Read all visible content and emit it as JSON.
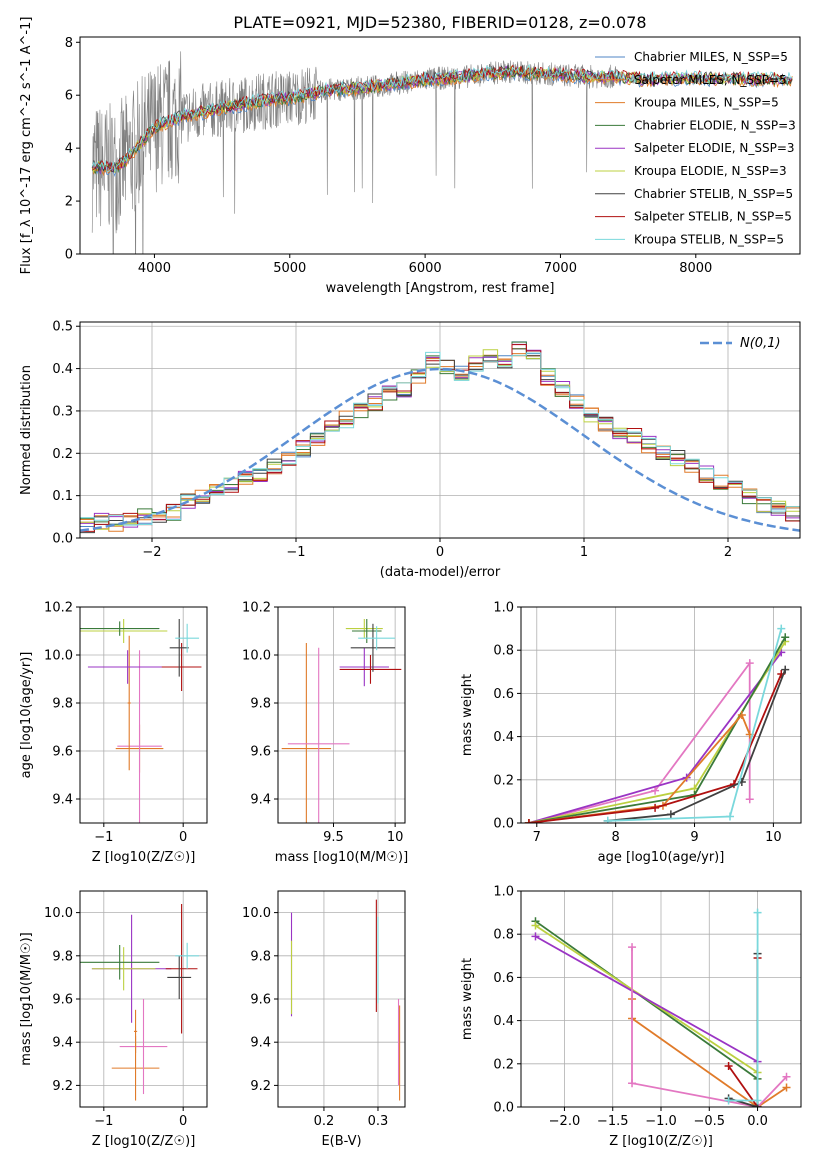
{
  "title": "PLATE=0921, MJD=52380, FIBERID=0128, z=0.078",
  "legend": [
    {
      "label": "Chabrier MILES, N_SSP=5",
      "color": "#4f86c6"
    },
    {
      "label": "Salpeter MILES, N_SSP=5",
      "color": "#e07b2a"
    },
    {
      "label": "Kroupa MILES, N_SSP=5",
      "color": "#e07b2a"
    },
    {
      "label": "Chabrier ELODIE, N_SSP=3",
      "color": "#3a7a3a"
    },
    {
      "label": "Salpeter ELODIE, N_SSP=3",
      "color": "#9a34c4"
    },
    {
      "label": "Kroupa ELODIE, N_SSP=3",
      "color": "#bcd040"
    },
    {
      "label": "Chabrier STELIB, N_SSP=5",
      "color": "#404040"
    },
    {
      "label": "Salpeter STELIB, N_SSP=5",
      "color": "#b01010"
    },
    {
      "label": "Kroupa STELIB, N_SSP=5",
      "color": "#7ad8dc"
    }
  ],
  "gaussian_label": "N(0,1)",
  "chart_data": [
    {
      "id": "spectrum",
      "type": "line",
      "xlabel": "wavelength [Angstrom, rest frame]",
      "ylabel": "Flux [f_λ 10^-17 erg cm^-2 s^-1 A^-1]",
      "xlim": [
        3450,
        8770
      ],
      "ylim": [
        0,
        8.2
      ],
      "xticks": [
        4000,
        5000,
        6000,
        7000,
        8000
      ],
      "yticks": [
        0,
        2,
        4,
        6,
        8
      ],
      "continuum": [
        [
          3540,
          3.3
        ],
        [
          3700,
          3.2
        ],
        [
          3800,
          3.6
        ],
        [
          4000,
          4.8
        ],
        [
          4200,
          5.2
        ],
        [
          4500,
          5.5
        ],
        [
          4800,
          5.8
        ],
        [
          5000,
          5.9
        ],
        [
          5300,
          6.2
        ],
        [
          5600,
          6.3
        ],
        [
          6000,
          6.6
        ],
        [
          6300,
          6.7
        ],
        [
          6600,
          6.9
        ],
        [
          6900,
          6.8
        ],
        [
          7200,
          6.7
        ],
        [
          7420,
          6.7
        ],
        [
          7600,
          6.6
        ],
        [
          8000,
          6.65
        ],
        [
          8400,
          6.6
        ],
        [
          8720,
          6.6
        ]
      ],
      "observed_range": [
        3540,
        7420
      ]
    },
    {
      "id": "residuals",
      "type": "histogram",
      "xlabel": "(data-model)/error",
      "ylabel": "Normed distribution",
      "xlim": [
        -2.5,
        2.5
      ],
      "ylim": [
        0,
        0.51
      ],
      "xticks": [
        -2,
        -1,
        0,
        1,
        2
      ],
      "yticks": [
        0.0,
        0.1,
        0.2,
        0.3,
        0.4,
        0.5
      ],
      "bin_width": 0.1,
      "series_values": [
        0.03,
        0.04,
        0.035,
        0.04,
        0.05,
        0.055,
        0.06,
        0.085,
        0.095,
        0.11,
        0.125,
        0.14,
        0.15,
        0.17,
        0.19,
        0.21,
        0.23,
        0.26,
        0.28,
        0.3,
        0.32,
        0.34,
        0.35,
        0.38,
        0.42,
        0.4,
        0.39,
        0.41,
        0.43,
        0.42,
        0.45,
        0.44,
        0.38,
        0.35,
        0.32,
        0.29,
        0.27,
        0.25,
        0.24,
        0.22,
        0.2,
        0.19,
        0.17,
        0.15,
        0.13,
        0.12,
        0.1,
        0.08,
        0.07,
        0.06
      ]
    },
    {
      "id": "age-vs-Z",
      "type": "scatter",
      "xlabel": "Z [log10(Z/Z☉)]",
      "ylabel": "age  [log10(age/yr)]",
      "xlim": [
        -1.3,
        0.3
      ],
      "ylim": [
        9.3,
        10.2
      ],
      "xticks": [
        -1,
        0
      ],
      "yticks": [
        9.4,
        9.6,
        9.8,
        10.0,
        10.2
      ],
      "points": [
        {
          "x": -0.55,
          "y": 9.61,
          "xerr": 0.3,
          "yerr": 0.1,
          "color": "#e07b2a"
        },
        {
          "x": -0.55,
          "y": 9.62,
          "xerr": 0.28,
          "yerr": 0.4,
          "color": "#e377c2"
        },
        {
          "x": -0.68,
          "y": 9.8,
          "xerr": 0.02,
          "yerr": 0.28,
          "color": "#e07b2a"
        },
        {
          "x": -0.7,
          "y": 9.95,
          "xerr": 0.5,
          "yerr": 0.07,
          "color": "#9a34c4"
        },
        {
          "x": -0.75,
          "y": 10.1,
          "xerr": 0.55,
          "yerr": 0.05,
          "color": "#bcd040"
        },
        {
          "x": -0.8,
          "y": 10.11,
          "xerr": 0.5,
          "yerr": 0.03,
          "color": "#3a7a3a"
        },
        {
          "x": -0.02,
          "y": 9.95,
          "xerr": 0.25,
          "yerr": 0.1,
          "color": "#b01010"
        },
        {
          "x": -0.05,
          "y": 10.03,
          "xerr": 0.12,
          "yerr": 0.12,
          "color": "#404040"
        },
        {
          "x": 0.05,
          "y": 10.07,
          "xerr": 0.15,
          "yerr": 0.06,
          "color": "#7ad8dc"
        }
      ]
    },
    {
      "id": "age-vs-mass",
      "type": "scatter",
      "xlabel": "mass [log10(M/M☉)]",
      "ylabel": "",
      "xlim": [
        9.05,
        10.08
      ],
      "ylim": [
        9.3,
        10.2
      ],
      "xticks": [
        9.5,
        10.0
      ],
      "yticks": [
        9.4,
        9.6,
        9.8,
        10.0,
        10.2
      ],
      "points": [
        {
          "x": 9.28,
          "y": 9.61,
          "xerr": 0.2,
          "yerr": 0.44,
          "color": "#e07b2a"
        },
        {
          "x": 9.38,
          "y": 9.63,
          "xerr": 0.25,
          "yerr": 0.4,
          "color": "#e377c2"
        },
        {
          "x": 9.75,
          "y": 9.95,
          "xerr": 0.2,
          "yerr": 0.08,
          "color": "#9a34c4"
        },
        {
          "x": 9.75,
          "y": 10.11,
          "xerr": 0.15,
          "yerr": 0.04,
          "color": "#bcd040"
        },
        {
          "x": 9.77,
          "y": 10.1,
          "xerr": 0.12,
          "yerr": 0.05,
          "color": "#3a7a3a"
        },
        {
          "x": 9.8,
          "y": 9.94,
          "xerr": 0.25,
          "yerr": 0.06,
          "color": "#b01010"
        },
        {
          "x": 9.82,
          "y": 10.03,
          "xerr": 0.18,
          "yerr": 0.1,
          "color": "#404040"
        },
        {
          "x": 9.85,
          "y": 10.07,
          "xerr": 0.15,
          "yerr": 0.05,
          "color": "#7ad8dc"
        }
      ]
    },
    {
      "id": "weight-vs-age",
      "type": "line",
      "xlabel": "age  [log10(age/yr)]",
      "ylabel": "mass weight",
      "xlim": [
        6.8,
        10.35
      ],
      "ylim": [
        0,
        1.0
      ],
      "xticks": [
        7,
        8,
        9,
        10
      ],
      "yticks": [
        0.0,
        0.2,
        0.4,
        0.6,
        0.8,
        1.0
      ],
      "series": [
        {
          "color": "#e377c2",
          "points": [
            [
              6.9,
              0.0
            ],
            [
              8.5,
              0.15
            ],
            [
              9.7,
              0.74
            ],
            [
              9.7,
              0.11
            ]
          ]
        },
        {
          "color": "#9a34c4",
          "points": [
            [
              6.9,
              0.0
            ],
            [
              8.9,
              0.21
            ],
            [
              10.1,
              0.79
            ]
          ]
        },
        {
          "color": "#bcd040",
          "points": [
            [
              6.9,
              0.0
            ],
            [
              9.0,
              0.16
            ],
            [
              10.15,
              0.84
            ]
          ]
        },
        {
          "color": "#3a7a3a",
          "points": [
            [
              6.9,
              0.0
            ],
            [
              9.0,
              0.13
            ],
            [
              10.15,
              0.86
            ]
          ]
        },
        {
          "color": "#e07b2a",
          "points": [
            [
              6.9,
              0.0
            ],
            [
              8.6,
              0.08
            ],
            [
              9.6,
              0.5
            ],
            [
              9.7,
              0.41
            ]
          ]
        },
        {
          "color": "#b01010",
          "points": [
            [
              6.9,
              0.0
            ],
            [
              8.5,
              0.07
            ],
            [
              9.5,
              0.18
            ],
            [
              10.1,
              0.69
            ]
          ]
        },
        {
          "color": "#404040",
          "points": [
            [
              7.9,
              0.01
            ],
            [
              8.7,
              0.04
            ],
            [
              9.6,
              0.19
            ],
            [
              10.15,
              0.71
            ]
          ]
        },
        {
          "color": "#7ad8dc",
          "points": [
            [
              7.9,
              0.01
            ],
            [
              9.45,
              0.03
            ],
            [
              10.1,
              0.9
            ]
          ]
        }
      ]
    },
    {
      "id": "mass-vs-Z",
      "type": "scatter",
      "xlabel": "Z [log10(Z/Z☉)]",
      "ylabel": "mass [log10(M/M☉)]",
      "xlim": [
        -1.3,
        0.3
      ],
      "ylim": [
        9.1,
        10.1
      ],
      "xticks": [
        -1,
        0
      ],
      "yticks": [
        9.2,
        9.4,
        9.6,
        9.8,
        10.0
      ],
      "points": [
        {
          "x": -0.6,
          "y": 9.28,
          "xerr": 0.3,
          "yerr": 0.15,
          "color": "#e07b2a"
        },
        {
          "x": -0.5,
          "y": 9.38,
          "xerr": 0.3,
          "yerr": 0.22,
          "color": "#e377c2"
        },
        {
          "x": -0.6,
          "y": 9.45,
          "xerr": 0.02,
          "yerr": 0.1,
          "color": "#e07b2a"
        },
        {
          "x": -0.65,
          "y": 9.74,
          "xerr": 0.5,
          "yerr": 0.25,
          "color": "#9a34c4"
        },
        {
          "x": -0.75,
          "y": 9.74,
          "xerr": 0.4,
          "yerr": 0.1,
          "color": "#bcd040"
        },
        {
          "x": -0.8,
          "y": 9.77,
          "xerr": 0.5,
          "yerr": 0.08,
          "color": "#3a7a3a"
        },
        {
          "x": -0.02,
          "y": 9.74,
          "xerr": 0.2,
          "yerr": 0.3,
          "color": "#b01010"
        },
        {
          "x": -0.05,
          "y": 9.7,
          "xerr": 0.15,
          "yerr": 0.1,
          "color": "#404040"
        },
        {
          "x": 0.05,
          "y": 9.8,
          "xerr": 0.15,
          "yerr": 0.06,
          "color": "#7ad8dc"
        }
      ]
    },
    {
      "id": "mass-vs-EBV",
      "type": "scatter",
      "xlabel": "E(B-V)",
      "ylabel": "",
      "xlim": [
        0.115,
        0.35
      ],
      "ylim": [
        9.1,
        10.1
      ],
      "xticks": [
        0.2,
        0.3
      ],
      "yticks": [
        9.2,
        9.4,
        9.6,
        9.8,
        10.0
      ],
      "points": [
        {
          "x": 0.14,
          "y": 9.76,
          "xerr": 0.0,
          "yerr": 0.24,
          "color": "#9a34c4"
        },
        {
          "x": 0.14,
          "y": 9.7,
          "xerr": 0.0,
          "yerr": 0.17,
          "color": "#bcd040"
        },
        {
          "x": 0.297,
          "y": 9.8,
          "xerr": 0.0,
          "yerr": 0.26,
          "color": "#b01010"
        },
        {
          "x": 0.3,
          "y": 9.78,
          "xerr": 0.0,
          "yerr": 0.2,
          "color": "#7ad8dc"
        },
        {
          "x": 0.34,
          "y": 9.35,
          "xerr": 0.0,
          "yerr": 0.22,
          "color": "#e07b2a"
        },
        {
          "x": 0.338,
          "y": 9.4,
          "xerr": 0.0,
          "yerr": 0.2,
          "color": "#e377c2"
        }
      ]
    },
    {
      "id": "weight-vs-Z",
      "type": "line",
      "xlabel": "Z [log10(Z/Z☉)]",
      "ylabel": "mass weight",
      "xlim": [
        -2.45,
        0.45
      ],
      "ylim": [
        0,
        1.0
      ],
      "xticks": [
        -2.0,
        -1.5,
        -1.0,
        -0.5,
        0.0
      ],
      "yticks": [
        0.0,
        0.2,
        0.4,
        0.6,
        0.8,
        1.0
      ],
      "series": [
        {
          "color": "#3a7a3a",
          "points": [
            [
              -2.3,
              0.86
            ],
            [
              0.0,
              0.13
            ]
          ]
        },
        {
          "color": "#bcd040",
          "points": [
            [
              -2.3,
              0.84
            ],
            [
              0.0,
              0.16
            ]
          ]
        },
        {
          "color": "#9a34c4",
          "points": [
            [
              -2.3,
              0.79
            ],
            [
              0.0,
              0.21
            ]
          ]
        },
        {
          "color": "#e07b2a",
          "points": [
            [
              -1.3,
              0.5
            ],
            [
              -1.3,
              0.41
            ],
            [
              0.0,
              0.0
            ],
            [
              0.3,
              0.09
            ]
          ]
        },
        {
          "color": "#e377c2",
          "points": [
            [
              -1.3,
              0.74
            ],
            [
              -1.3,
              0.11
            ],
            [
              0.0,
              0.0
            ],
            [
              0.3,
              0.14
            ]
          ]
        },
        {
          "color": "#b01010",
          "points": [
            [
              -0.3,
              0.19
            ],
            [
              0.0,
              0.0
            ],
            [
              0.0,
              0.69
            ]
          ]
        },
        {
          "color": "#404040",
          "points": [
            [
              -0.3,
              0.04
            ],
            [
              0.0,
              0.0
            ],
            [
              0.0,
              0.71
            ]
          ]
        },
        {
          "color": "#7ad8dc",
          "points": [
            [
              -0.3,
              0.03
            ],
            [
              0.0,
              0.03
            ],
            [
              0.0,
              0.9
            ]
          ]
        }
      ]
    }
  ]
}
